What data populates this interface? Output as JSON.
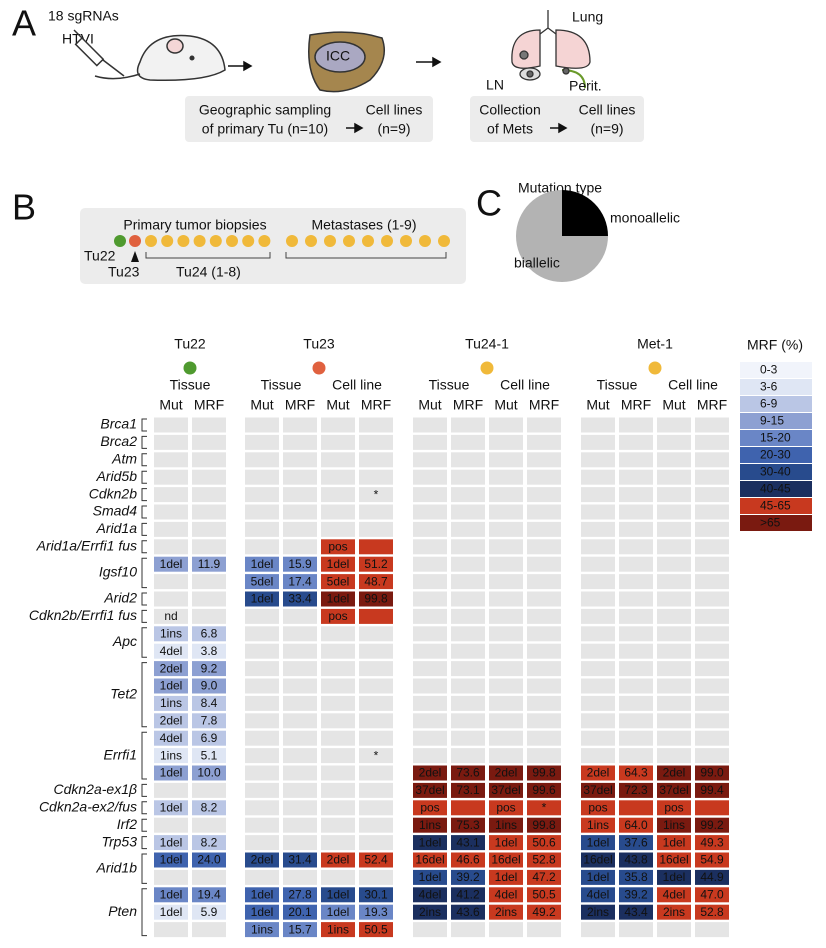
{
  "panel_a": {
    "label": "A",
    "injection": [
      "18 sgRNAs",
      "HTVI"
    ],
    "liver": "ICC",
    "sites": [
      "Lung",
      "LN",
      "Perit."
    ],
    "primary": {
      "caption": [
        "Geographic sampling",
        "of primary Tu (n=10)"
      ],
      "result": [
        "Cell lines",
        "(n=9)"
      ]
    },
    "mets": {
      "caption": [
        "Collection",
        "of Mets"
      ],
      "result": [
        "Cell lines",
        "(n=9)"
      ]
    }
  },
  "panel_b": {
    "label": "B",
    "primary": "Primary tumor biopsies",
    "metastases": "Metastases (1-9)",
    "tumors": [
      "Tu22",
      "Tu23",
      "Tu24 (1-8)"
    ]
  },
  "panel_c": {
    "label": "C",
    "title": "Mutation type",
    "type": "pie",
    "categories": [
      "monoallelic",
      "biallelic"
    ],
    "values": [
      25,
      75
    ],
    "colors": [
      "#000000",
      "#b3b3b3"
    ]
  },
  "heatmap": {
    "groups": [
      {
        "name": "Tu22",
        "color": "#4f9a2f",
        "samples": [
          {
            "label": "Tissue",
            "columns": [
              "Mut",
              "MRF"
            ]
          }
        ]
      },
      {
        "name": "Tu23",
        "color": "#e0613f",
        "samples": [
          {
            "label": "Tissue",
            "columns": [
              "Mut",
              "MRF"
            ]
          },
          {
            "label": "Cell line",
            "columns": [
              "Mut",
              "MRF"
            ]
          }
        ]
      },
      {
        "name": "Tu24-1",
        "color": "#f0b93a",
        "samples": [
          {
            "label": "Tissue",
            "columns": [
              "Mut",
              "MRF"
            ]
          },
          {
            "label": "Cell line",
            "columns": [
              "Mut",
              "MRF"
            ]
          }
        ]
      },
      {
        "name": "Met-1",
        "color": "#f0b93a",
        "samples": [
          {
            "label": "Tissue",
            "columns": [
              "Mut",
              "MRF"
            ]
          },
          {
            "label": "Cell line",
            "columns": [
              "Mut",
              "MRF"
            ]
          }
        ]
      }
    ],
    "genes": [
      {
        "name": "Brca1",
        "rows": [
          [
            null,
            null,
            null,
            null,
            null,
            null,
            null
          ]
        ]
      },
      {
        "name": "Brca2",
        "rows": [
          [
            null,
            null,
            null,
            null,
            null,
            null,
            null
          ]
        ]
      },
      {
        "name": "Atm",
        "rows": [
          [
            null,
            null,
            null,
            null,
            null,
            null,
            null
          ]
        ]
      },
      {
        "name": "Arid5b",
        "rows": [
          [
            null,
            null,
            null,
            null,
            null,
            null,
            null
          ]
        ]
      },
      {
        "name": "Cdkn2b",
        "rows": [
          [
            null,
            null,
            {
              "mrf": "*"
            },
            null,
            null,
            null,
            null
          ]
        ]
      },
      {
        "name": "Smad4",
        "rows": [
          [
            null,
            null,
            null,
            null,
            null,
            null,
            null
          ]
        ]
      },
      {
        "name": "Arid1a",
        "rows": [
          [
            null,
            null,
            null,
            null,
            null,
            null,
            null
          ]
        ]
      },
      {
        "name": "Arid1a/Errfi1 fus",
        "rows": [
          [
            null,
            null,
            {
              "mut": "pos",
              "bin": 8
            },
            null,
            null,
            null,
            null
          ]
        ]
      },
      {
        "name": "Igsf10",
        "rows": [
          [
            {
              "mut": "1del",
              "mrf": "11.9",
              "bin": 3
            },
            {
              "mut": "1del",
              "mrf": "15.9",
              "bin": 4
            },
            {
              "mut": "1del",
              "mrf": "51.2",
              "bin": 8
            },
            null,
            null,
            null,
            null
          ],
          [
            null,
            {
              "mut": "5del",
              "mrf": "17.4",
              "bin": 4
            },
            {
              "mut": "5del",
              "mrf": "48.7",
              "bin": 8
            },
            null,
            null,
            null,
            null
          ]
        ]
      },
      {
        "name": "Arid2",
        "rows": [
          [
            null,
            {
              "mut": "1del",
              "mrf": "33.4",
              "bin": 6
            },
            {
              "mut": "1del",
              "mrf": "99.8",
              "bin": 9
            },
            null,
            null,
            null,
            null
          ]
        ]
      },
      {
        "name": "Cdkn2b/Errfi1 fus",
        "rows": [
          [
            {
              "mut": "nd"
            },
            null,
            {
              "mut": "pos",
              "bin": 8
            },
            null,
            null,
            null,
            null
          ]
        ]
      },
      {
        "name": "Apc",
        "rows": [
          [
            {
              "mut": "1ins",
              "mrf": "6.8",
              "bin": 2
            },
            null,
            null,
            null,
            null,
            null,
            null
          ],
          [
            {
              "mut": "4del",
              "mrf": "3.8",
              "bin": 1
            },
            null,
            null,
            null,
            null,
            null,
            null
          ]
        ]
      },
      {
        "name": "Tet2",
        "rows": [
          [
            {
              "mut": "2del",
              "mrf": "9.2",
              "bin": 3
            },
            null,
            null,
            null,
            null,
            null,
            null
          ],
          [
            {
              "mut": "1del",
              "mrf": "9.0",
              "bin": 3
            },
            null,
            null,
            null,
            null,
            null,
            null
          ],
          [
            {
              "mut": "1ins",
              "mrf": "8.4",
              "bin": 2
            },
            null,
            null,
            null,
            null,
            null,
            null
          ],
          [
            {
              "mut": "2del",
              "mrf": "7.8",
              "bin": 2
            },
            null,
            null,
            null,
            null,
            null,
            null
          ]
        ]
      },
      {
        "name": "Errfi1",
        "rows": [
          [
            {
              "mut": "4del",
              "mrf": "6.9",
              "bin": 2
            },
            null,
            null,
            null,
            null,
            null,
            null
          ],
          [
            {
              "mut": "1ins",
              "mrf": "5.1",
              "bin": 1
            },
            null,
            {
              "mrf": "*"
            },
            null,
            null,
            null,
            null
          ],
          [
            {
              "mut": "1del",
              "mrf": "10.0",
              "bin": 3
            },
            null,
            null,
            {
              "mut": "2del",
              "mrf": "73.6",
              "bin": 9
            },
            {
              "mut": "2del",
              "mrf": "99.8",
              "bin": 9
            },
            {
              "mut": "2del",
              "mrf": "64.3",
              "bin": 8
            },
            {
              "mut": "2del",
              "mrf": "99.0",
              "bin": 9
            }
          ]
        ]
      },
      {
        "name": "Cdkn2a-ex1β",
        "rows": [
          [
            null,
            null,
            null,
            {
              "mut": "37del",
              "mrf": "73.1",
              "bin": 9
            },
            {
              "mut": "37del",
              "mrf": "99.6",
              "bin": 9
            },
            {
              "mut": "37del",
              "mrf": "72.3",
              "bin": 9
            },
            {
              "mut": "37del",
              "mrf": "99.4",
              "bin": 9
            }
          ]
        ]
      },
      {
        "name": "Cdkn2a-ex2/fus",
        "rows": [
          [
            {
              "mut": "1del",
              "mrf": "8.2",
              "bin": 2
            },
            null,
            null,
            {
              "mut": "pos",
              "bin": 8
            },
            {
              "mut": "pos",
              "mrf": "*",
              "bin": 8
            },
            {
              "mut": "pos",
              "bin": 8
            },
            {
              "mut": "pos",
              "bin": 8
            }
          ]
        ]
      },
      {
        "name": "Irf2",
        "rows": [
          [
            null,
            null,
            null,
            {
              "mut": "1ins",
              "mrf": "75.3",
              "bin": 9
            },
            {
              "mut": "1ins",
              "mrf": "99.8",
              "bin": 9
            },
            {
              "mut": "1ins",
              "mrf": "64.0",
              "bin": 8
            },
            {
              "mut": "1ins",
              "mrf": "99.2",
              "bin": 9
            }
          ]
        ]
      },
      {
        "name": "Trp53",
        "rows": [
          [
            {
              "mut": "1del",
              "mrf": "8.2",
              "bin": 2
            },
            null,
            null,
            {
              "mut": "1del",
              "mrf": "43.1",
              "bin": 7
            },
            {
              "mut": "1del",
              "mrf": "50.6",
              "bin": 8
            },
            {
              "mut": "1del",
              "mrf": "37.6",
              "bin": 6
            },
            {
              "mut": "1del",
              "mrf": "49.3",
              "bin": 8
            }
          ]
        ]
      },
      {
        "name": "Arid1b",
        "rows": [
          [
            {
              "mut": "1del",
              "mrf": "24.0",
              "bin": 5
            },
            {
              "mut": "2del",
              "mrf": "31.4",
              "bin": 6
            },
            {
              "mut": "2del",
              "mrf": "52.4",
              "bin": 8
            },
            {
              "mut": "16del",
              "mrf": "46.6",
              "bin": 8
            },
            {
              "mut": "16del",
              "mrf": "52.8",
              "bin": 8
            },
            {
              "mut": "16del",
              "mrf": "43.8",
              "bin": 7
            },
            {
              "mut": "16del",
              "mrf": "54.9",
              "bin": 8
            }
          ],
          [
            null,
            null,
            null,
            {
              "mut": "1del",
              "mrf": "39.2",
              "bin": 6
            },
            {
              "mut": "1del",
              "mrf": "47.2",
              "bin": 8
            },
            {
              "mut": "1del",
              "mrf": "35.8",
              "bin": 6
            },
            {
              "mut": "1del",
              "mrf": "44.9",
              "bin": 7
            }
          ]
        ]
      },
      {
        "name": "Pten",
        "rows": [
          [
            {
              "mut": "1del",
              "mrf": "19.4",
              "bin": 4
            },
            {
              "mut": "1del",
              "mrf": "27.8",
              "bin": 5
            },
            {
              "mut": "1del",
              "mrf": "30.1",
              "bin": 6
            },
            {
              "mut": "4del",
              "mrf": "41.2",
              "bin": 7
            },
            {
              "mut": "4del",
              "mrf": "50.5",
              "bin": 8
            },
            {
              "mut": "4del",
              "mrf": "39.2",
              "bin": 6
            },
            {
              "mut": "4del",
              "mrf": "47.0",
              "bin": 8
            }
          ],
          [
            {
              "mut": "1del",
              "mrf": "5.9",
              "bin": 1
            },
            {
              "mut": "1del",
              "mrf": "20.1",
              "bin": 5
            },
            {
              "mut": "1del",
              "mrf": "19.3",
              "bin": 4
            },
            {
              "mut": "2ins",
              "mrf": "43.6",
              "bin": 7
            },
            {
              "mut": "2ins",
              "mrf": "49.2",
              "bin": 8
            },
            {
              "mut": "2ins",
              "mrf": "43.4",
              "bin": 7
            },
            {
              "mut": "2ins",
              "mrf": "52.8",
              "bin": 8
            }
          ],
          [
            null,
            {
              "mut": "1ins",
              "mrf": "15.7",
              "bin": 4
            },
            {
              "mut": "1ins",
              "mrf": "50.5",
              "bin": 8
            },
            null,
            null,
            null,
            null
          ]
        ]
      }
    ],
    "legend": {
      "title": "MRF (%)",
      "bins": [
        {
          "label": "0-3",
          "color": "#f1f4fb"
        },
        {
          "label": "3-6",
          "color": "#dfe6f4"
        },
        {
          "label": "6-9",
          "color": "#bac6e5"
        },
        {
          "label": "9-15",
          "color": "#8da0d2"
        },
        {
          "label": "15-20",
          "color": "#6a86c6"
        },
        {
          "label": "20-30",
          "color": "#3f63ae"
        },
        {
          "label": "30-40",
          "color": "#284b8d"
        },
        {
          "label": "40-45",
          "color": "#1b2f5f"
        },
        {
          "label": "45-65",
          "color": "#c8391f"
        },
        {
          "label": ">65",
          "color": "#7a1a10"
        }
      ]
    }
  }
}
